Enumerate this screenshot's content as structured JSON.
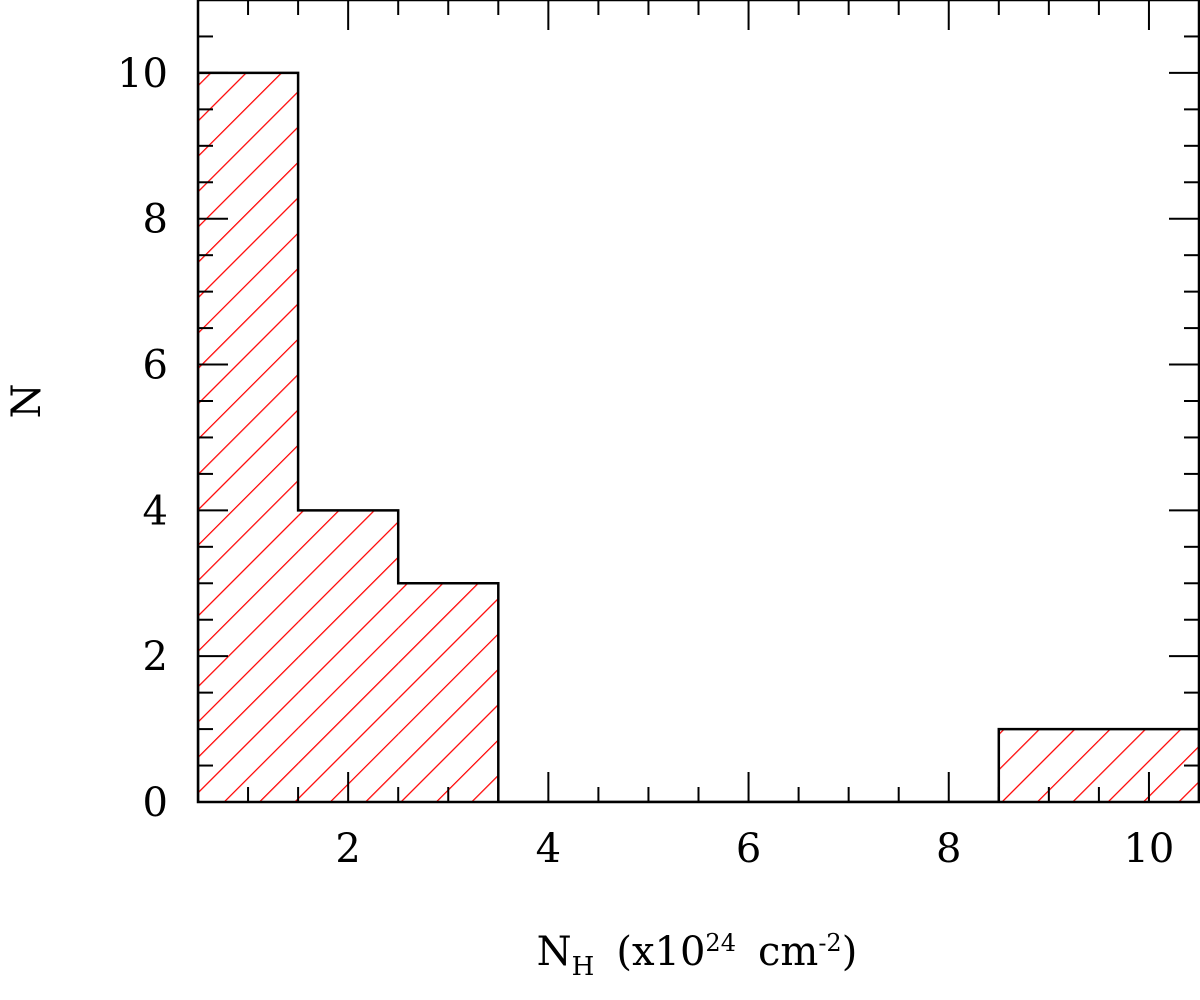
{
  "chart_data": {
    "type": "bar",
    "histogram": true,
    "bins": [
      {
        "x0": 0.5,
        "x1": 1.5,
        "count": 10
      },
      {
        "x0": 1.5,
        "x1": 2.5,
        "count": 4
      },
      {
        "x0": 2.5,
        "x1": 3.5,
        "count": 3
      },
      {
        "x0": 3.5,
        "x1": 4.5,
        "count": 0
      },
      {
        "x0": 4.5,
        "x1": 5.5,
        "count": 0
      },
      {
        "x0": 5.5,
        "x1": 6.5,
        "count": 0
      },
      {
        "x0": 6.5,
        "x1": 7.5,
        "count": 0
      },
      {
        "x0": 7.5,
        "x1": 8.5,
        "count": 0
      },
      {
        "x0": 8.5,
        "x1": 9.5,
        "count": 1
      },
      {
        "x0": 9.5,
        "x1": 10.5,
        "count": 1
      }
    ],
    "xlim": [
      0.5,
      10.5
    ],
    "ylim": [
      0,
      11
    ],
    "x_ticks_major": [
      "2",
      "4",
      "6",
      "8",
      "10"
    ],
    "y_ticks_major": [
      "0",
      "2",
      "4",
      "6",
      "8",
      "10"
    ],
    "xlabel": {
      "main": "N",
      "subscript": "H",
      "text": "(x10",
      "superscript": "24",
      "unit": "cm",
      "unit_exponent": "-2",
      "close": ")"
    },
    "ylabel": "N",
    "title": "",
    "grid": false,
    "legend": "none",
    "fill": "diagonal-hatch",
    "hatch_color": "#ff0000",
    "outline_color": "#000000"
  }
}
